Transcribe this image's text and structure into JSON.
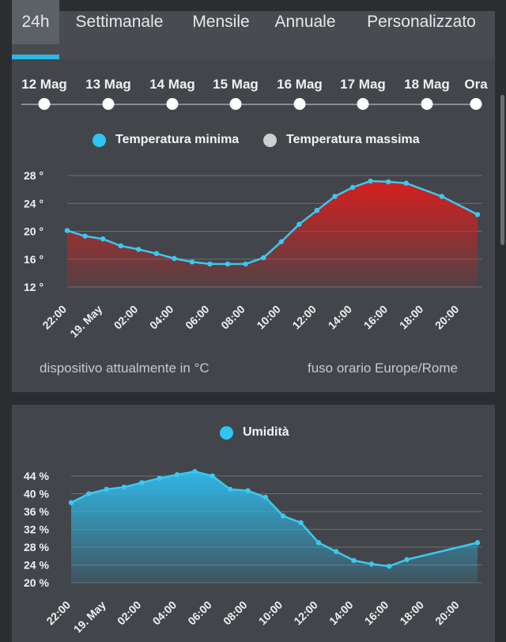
{
  "tabs": [
    {
      "label": "24h",
      "active": true
    },
    {
      "label": "Settimanale",
      "active": false
    },
    {
      "label": "Mensile",
      "active": false
    },
    {
      "label": "Annuale",
      "active": false
    },
    {
      "label": "Personalizzato",
      "active": false
    }
  ],
  "dates": [
    "12 Mag",
    "13 Mag",
    "14 Mag",
    "15 Mag",
    "16 Mag",
    "17 Mag",
    "18 Mag",
    "Ora"
  ],
  "footer": {
    "units_note": "dispositivo attualmente in °C",
    "timezone_note": "fuso orario Europe/Rome"
  },
  "colors": {
    "accent": "#2eb7e6",
    "temp_line": "#3cc8f0",
    "temp_fill": "#d51f1f",
    "humidity_fill": "#30b6e6",
    "legend_max": "#d0d0d0"
  },
  "chart_data": [
    {
      "type": "area",
      "legend": [
        {
          "label": "Temperatura minima",
          "color": "#2ec5f2"
        },
        {
          "label": "Temperatura massima",
          "color": "#cfcfcf"
        }
      ],
      "x_ticks": [
        "22:00",
        "19. May",
        "02:00",
        "04:00",
        "06:00",
        "08:00",
        "10:00",
        "12:00",
        "14:00",
        "16:00",
        "18:00",
        "20:00"
      ],
      "y_ticks": [
        "28 °",
        "24 °",
        "20 °",
        "16 °",
        "12 °"
      ],
      "y_tick_values": [
        28,
        24,
        20,
        16,
        12
      ],
      "ylim": [
        12,
        28
      ],
      "x_range": [
        21,
        44
      ],
      "x": [
        21,
        22,
        23,
        24,
        25,
        26,
        27,
        28,
        29,
        30,
        31,
        32,
        33,
        34,
        35,
        36,
        37,
        38,
        39,
        40,
        42,
        44
      ],
      "values": [
        20.1,
        19.3,
        18.9,
        17.9,
        17.4,
        16.8,
        16.1,
        15.6,
        15.3,
        15.3,
        15.3,
        16.2,
        18.5,
        21.0,
        23.0,
        25.0,
        26.3,
        27.2,
        27.1,
        26.9,
        25.0,
        22.4
      ],
      "grid": true
    },
    {
      "type": "area",
      "legend": [
        {
          "label": "Umidità",
          "color": "#2ec5f2"
        }
      ],
      "x_ticks": [
        "22:00",
        "19. May",
        "02:00",
        "04:00",
        "06:00",
        "08:00",
        "10:00",
        "12:00",
        "14:00",
        "16:00",
        "18:00",
        "20:00"
      ],
      "y_ticks": [
        "44 %",
        "40 %",
        "36 %",
        "32 %",
        "28 %",
        "24 %",
        "20 %"
      ],
      "y_tick_values": [
        44,
        40,
        36,
        32,
        28,
        24,
        20
      ],
      "ylim": [
        20,
        44
      ],
      "x_range": [
        21,
        44
      ],
      "x": [
        21,
        22,
        23,
        24,
        25,
        26,
        27,
        28,
        29,
        30,
        31,
        32,
        33,
        34,
        35,
        36,
        37,
        38,
        39,
        40,
        44
      ],
      "values": [
        38.0,
        40.0,
        41.0,
        41.5,
        42.5,
        43.5,
        44.3,
        45.0,
        44.0,
        41.0,
        40.7,
        39.2,
        35.0,
        33.5,
        29.0,
        27.0,
        25.0,
        24.2,
        23.7,
        25.2,
        29.0
      ],
      "grid": true
    }
  ]
}
